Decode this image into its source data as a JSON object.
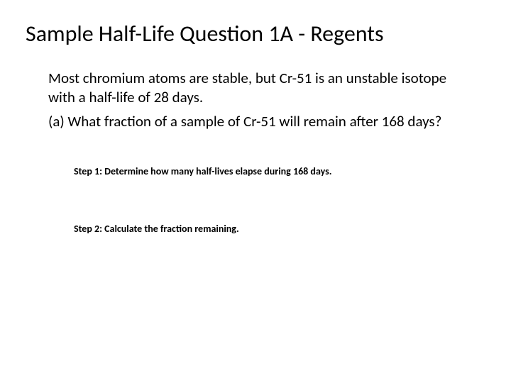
{
  "slide": {
    "title": "Sample Half-Life Question 1A - Regents",
    "body_line1": "Most chromium atoms are stable, but Cr-51 is an unstable isotope with a half-life of 28 days.",
    "body_line2": "(a) What fraction of a sample of Cr-51 will remain after 168 days?",
    "step1": "Step 1: Determine how many half-lives elapse during 168 days.",
    "step2": "Step 2: Calculate the fraction remaining.",
    "colors": {
      "background": "#ffffff",
      "text": "#000000"
    },
    "fonts": {
      "title_size": 32,
      "body_size": 21,
      "step_size": 14,
      "step_weight": 700
    }
  }
}
